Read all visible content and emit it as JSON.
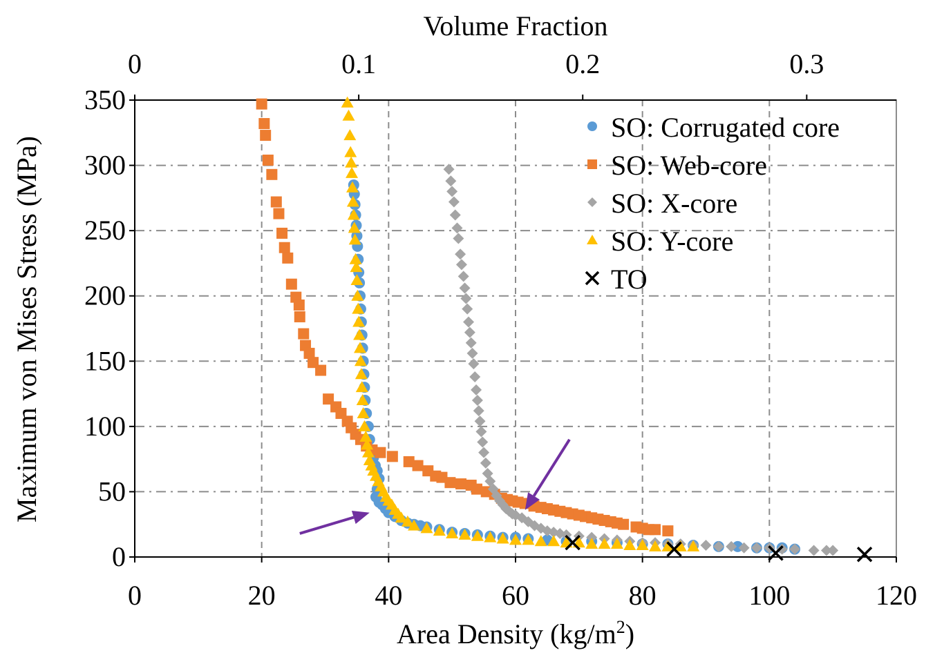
{
  "chart_data": {
    "type": "scatter",
    "title": "",
    "xlabel_main": "Area Density (kg/m",
    "xlabel_sup": "2",
    "xlabel_tail": ")",
    "x2label": "Volume Fraction",
    "ylabel": "Maximum von Mises Stress (MPa)",
    "xlim": [
      0,
      120
    ],
    "ylim": [
      0,
      350
    ],
    "x2lim": [
      0,
      0.34
    ],
    "xticks": [
      "0",
      "20",
      "40",
      "60",
      "80",
      "100",
      "120"
    ],
    "yticks": [
      "0",
      "50",
      "100",
      "150",
      "200",
      "250",
      "300",
      "350"
    ],
    "x2ticks": [
      "0",
      "0.1",
      "0.2",
      "0.3"
    ],
    "grid": true,
    "legend_position": "top-right",
    "series": [
      {
        "name": "SO: Corrugated core",
        "marker": "circle",
        "color": "#5B9BD5",
        "points": [
          [
            34.5,
            285
          ],
          [
            34.6,
            278
          ],
          [
            34.7,
            270
          ],
          [
            34.8,
            262
          ],
          [
            34.9,
            254
          ],
          [
            35.0,
            246
          ],
          [
            35.1,
            238
          ],
          [
            35.2,
            228
          ],
          [
            35.3,
            218
          ],
          [
            35.4,
            210
          ],
          [
            35.5,
            200
          ],
          [
            35.6,
            190
          ],
          [
            35.7,
            180
          ],
          [
            35.8,
            170
          ],
          [
            35.9,
            160
          ],
          [
            36.0,
            150
          ],
          [
            36.1,
            140
          ],
          [
            36.2,
            130
          ],
          [
            36.3,
            120
          ],
          [
            36.5,
            110
          ],
          [
            36.8,
            100
          ],
          [
            37.0,
            90
          ],
          [
            37.3,
            82
          ],
          [
            37.6,
            76
          ],
          [
            37.9,
            70
          ],
          [
            38.2,
            66
          ],
          [
            38.5,
            60
          ],
          [
            38.2,
            52
          ],
          [
            38.0,
            46
          ],
          [
            38.5,
            42
          ],
          [
            39.0,
            40
          ],
          [
            39.5,
            37
          ],
          [
            40,
            34
          ],
          [
            41,
            31
          ],
          [
            42,
            28
          ],
          [
            43,
            26
          ],
          [
            44,
            25
          ],
          [
            45,
            24
          ],
          [
            46,
            23
          ],
          [
            48,
            21
          ],
          [
            50,
            19
          ],
          [
            52,
            18
          ],
          [
            54,
            17
          ],
          [
            56,
            16
          ],
          [
            58,
            15
          ],
          [
            60,
            15
          ],
          [
            62,
            14
          ],
          [
            65,
            13
          ],
          [
            68,
            12
          ],
          [
            72,
            12
          ],
          [
            76,
            11
          ],
          [
            80,
            10
          ],
          [
            84,
            10
          ],
          [
            88,
            9
          ],
          [
            92,
            8
          ],
          [
            95,
            8
          ],
          [
            98,
            7
          ],
          [
            100,
            7
          ],
          [
            102,
            7
          ],
          [
            104,
            6
          ]
        ]
      },
      {
        "name": "SO: Web-core",
        "marker": "square",
        "color": "#ED7D31",
        "points": [
          [
            20,
            347
          ],
          [
            20.4,
            332
          ],
          [
            20.6,
            323
          ],
          [
            21,
            304
          ],
          [
            21.6,
            293
          ],
          [
            22.3,
            272
          ],
          [
            22.7,
            263
          ],
          [
            23.2,
            248
          ],
          [
            23.6,
            237
          ],
          [
            24.1,
            229
          ],
          [
            24.7,
            209
          ],
          [
            25.4,
            199
          ],
          [
            25.9,
            193
          ],
          [
            26,
            184
          ],
          [
            26.6,
            171
          ],
          [
            26.9,
            162
          ],
          [
            27.5,
            156
          ],
          [
            28.1,
            149
          ],
          [
            29.3,
            143
          ],
          [
            30.5,
            121
          ],
          [
            31.7,
            115
          ],
          [
            32.5,
            110
          ],
          [
            33.5,
            104
          ],
          [
            34.1,
            99
          ],
          [
            34.8,
            94
          ],
          [
            35.6,
            90
          ],
          [
            36.5,
            85
          ],
          [
            37.4,
            82
          ],
          [
            38.7,
            80
          ],
          [
            40.6,
            77
          ],
          [
            43.2,
            73
          ],
          [
            44.6,
            70
          ],
          [
            46.2,
            66
          ],
          [
            47.4,
            62
          ],
          [
            48.4,
            61
          ],
          [
            49.7,
            57
          ],
          [
            51.4,
            56
          ],
          [
            53.0,
            55
          ],
          [
            53.9,
            52
          ],
          [
            55.4,
            50
          ],
          [
            56.7,
            48
          ],
          [
            57.8,
            45
          ],
          [
            58.7,
            44
          ],
          [
            59.5,
            43
          ],
          [
            60.4,
            42
          ],
          [
            61.5,
            41
          ],
          [
            62.9,
            39
          ],
          [
            64,
            38
          ],
          [
            65,
            37
          ],
          [
            66,
            36
          ],
          [
            67,
            35
          ],
          [
            68,
            34
          ],
          [
            69,
            33
          ],
          [
            70,
            32
          ],
          [
            71,
            31
          ],
          [
            72,
            30
          ],
          [
            73,
            29
          ],
          [
            74,
            28
          ],
          [
            75,
            27
          ],
          [
            76,
            26
          ],
          [
            77,
            25
          ],
          [
            79,
            23
          ],
          [
            80,
            22
          ],
          [
            81,
            21
          ],
          [
            82,
            21
          ],
          [
            84,
            20
          ]
        ]
      },
      {
        "name": "SO: X-core",
        "marker": "diamond",
        "color": "#A5A5A5",
        "points": [
          [
            49.5,
            297
          ],
          [
            49.8,
            288
          ],
          [
            50,
            280
          ],
          [
            50.3,
            272
          ],
          [
            50.5,
            262
          ],
          [
            50.8,
            252
          ],
          [
            51,
            244
          ],
          [
            51.3,
            232
          ],
          [
            51.5,
            224
          ],
          [
            51.8,
            215
          ],
          [
            52,
            206
          ],
          [
            52.2,
            198
          ],
          [
            52.4,
            190
          ],
          [
            52.6,
            180
          ],
          [
            52.8,
            172
          ],
          [
            53,
            164
          ],
          [
            53.2,
            156
          ],
          [
            53.4,
            148
          ],
          [
            53.6,
            138
          ],
          [
            53.8,
            128
          ],
          [
            54,
            120
          ],
          [
            54.2,
            112
          ],
          [
            54.4,
            104
          ],
          [
            54.6,
            96
          ],
          [
            54.8,
            88
          ],
          [
            55,
            80
          ],
          [
            55.3,
            72
          ],
          [
            55.6,
            64
          ],
          [
            56,
            58
          ],
          [
            56.5,
            52
          ],
          [
            57,
            47
          ],
          [
            57.5,
            43
          ],
          [
            58,
            40
          ],
          [
            58.5,
            37
          ],
          [
            59,
            35
          ],
          [
            59.5,
            33
          ],
          [
            60,
            32
          ],
          [
            61,
            30
          ],
          [
            62,
            27
          ],
          [
            63,
            24
          ],
          [
            64,
            22
          ],
          [
            65,
            20
          ],
          [
            66,
            19
          ],
          [
            67,
            18
          ],
          [
            68,
            17
          ],
          [
            70,
            16
          ],
          [
            72,
            15
          ],
          [
            74,
            14
          ],
          [
            76,
            13
          ],
          [
            78,
            12
          ],
          [
            80,
            11
          ],
          [
            82,
            11
          ],
          [
            84,
            10
          ],
          [
            86,
            10
          ],
          [
            88,
            9
          ],
          [
            90,
            9
          ],
          [
            92,
            8
          ],
          [
            94,
            8
          ],
          [
            96,
            7
          ],
          [
            98,
            7
          ],
          [
            100,
            7
          ],
          [
            102,
            6
          ],
          [
            104,
            6
          ],
          [
            107,
            5
          ],
          [
            109,
            5
          ],
          [
            110,
            5
          ]
        ]
      },
      {
        "name": "SO: Y-core",
        "marker": "triangle",
        "color": "#FFC000",
        "points": [
          [
            33.5,
            348
          ],
          [
            33.7,
            338
          ],
          [
            33.9,
            323
          ],
          [
            34.0,
            310
          ],
          [
            34.1,
            302
          ],
          [
            34.2,
            294
          ],
          [
            34.3,
            283
          ],
          [
            34.4,
            272
          ],
          [
            34.5,
            262
          ],
          [
            34.6,
            252
          ],
          [
            34.7,
            243
          ],
          [
            34.8,
            228
          ],
          [
            34.9,
            222
          ],
          [
            35.0,
            212
          ],
          [
            35.1,
            200
          ],
          [
            35.2,
            190
          ],
          [
            35.3,
            180
          ],
          [
            35.4,
            170
          ],
          [
            35.5,
            160
          ],
          [
            35.6,
            150
          ],
          [
            35.7,
            140
          ],
          [
            35.8,
            130
          ],
          [
            35.9,
            120
          ],
          [
            36.0,
            110
          ],
          [
            36.2,
            100
          ],
          [
            36.4,
            92
          ],
          [
            36.6,
            86
          ],
          [
            36.8,
            80
          ],
          [
            37.0,
            74
          ],
          [
            37.3,
            70
          ],
          [
            37.6,
            66
          ],
          [
            38,
            62
          ],
          [
            38.4,
            58
          ],
          [
            38.8,
            54
          ],
          [
            39.2,
            50
          ],
          [
            39.6,
            46
          ],
          [
            40,
            43
          ],
          [
            40.5,
            40
          ],
          [
            41,
            36
          ],
          [
            41.5,
            33
          ],
          [
            42,
            30
          ],
          [
            43,
            27
          ],
          [
            44,
            24
          ],
          [
            46,
            22
          ],
          [
            48,
            20
          ],
          [
            50,
            18
          ],
          [
            52,
            17
          ],
          [
            54,
            16
          ],
          [
            56,
            15
          ],
          [
            58,
            14
          ],
          [
            60,
            13
          ],
          [
            62,
            13
          ],
          [
            64,
            12
          ],
          [
            66,
            12
          ],
          [
            68,
            11
          ],
          [
            70,
            11
          ],
          [
            72,
            10
          ],
          [
            74,
            10
          ],
          [
            76,
            10
          ],
          [
            78,
            9
          ],
          [
            80,
            9
          ],
          [
            82,
            8
          ],
          [
            84,
            8
          ],
          [
            86,
            8
          ],
          [
            88,
            8
          ]
        ]
      },
      {
        "name": "TO",
        "marker": "x",
        "color": "#000000",
        "points": [
          [
            69,
            11
          ],
          [
            85,
            6
          ],
          [
            101,
            3
          ],
          [
            115,
            2
          ]
        ]
      }
    ],
    "annotations": [
      {
        "type": "arrow",
        "color": "#7030A0",
        "from": [
          26,
          18
        ],
        "to": [
          37,
          34
        ]
      },
      {
        "type": "arrow",
        "color": "#7030A0",
        "from": [
          68.5,
          90
        ],
        "to": [
          61.5,
          36
        ]
      }
    ]
  }
}
